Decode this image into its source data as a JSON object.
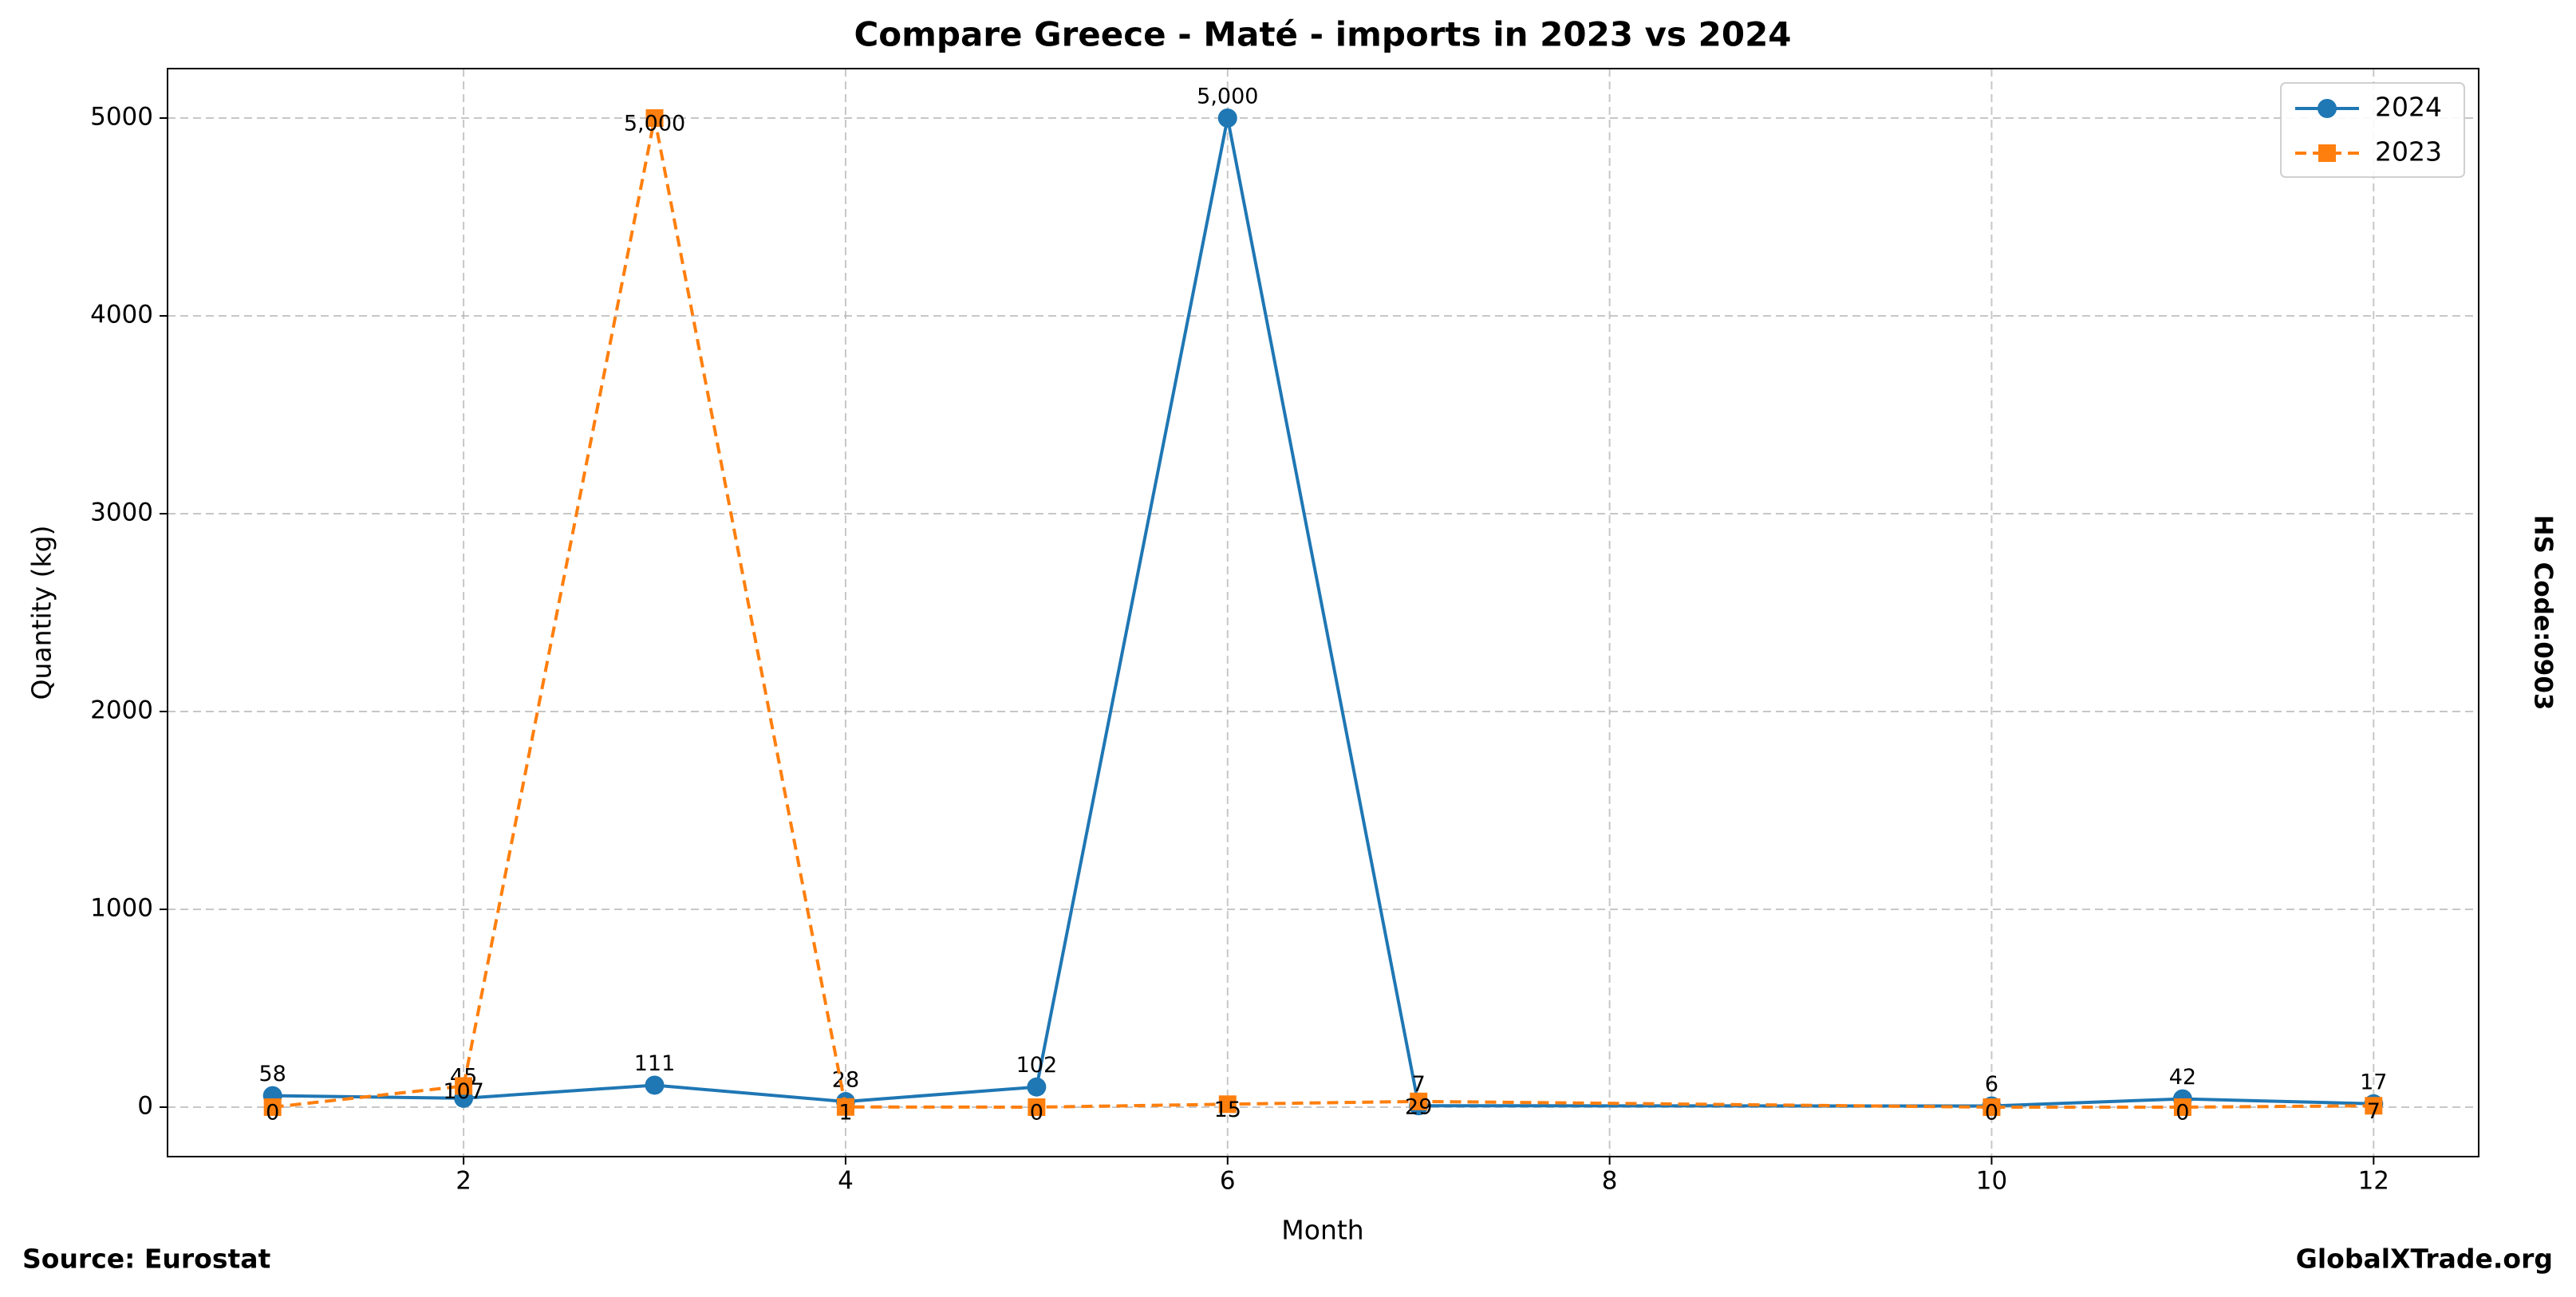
{
  "chart_data": {
    "type": "line",
    "title": "Compare Greece - Maté - imports in 2023 vs 2024",
    "x_label": "Month",
    "y_label": "Quantity (kg)",
    "side_text": "HS Code:0903",
    "source": "Source: Eurostat",
    "watermark": "GlobalXTrade.org",
    "x": [
      1,
      2,
      3,
      4,
      5,
      6,
      7,
      10,
      11,
      12
    ],
    "series": [
      {
        "name": "2024",
        "color": "#1f77b4",
        "linestyle": "solid",
        "marker": "circle",
        "values": [
          58,
          45,
          111,
          28,
          102,
          5000,
          7,
          6,
          42,
          17
        ],
        "value_labels": [
          "58",
          "45",
          "111",
          "28",
          "102",
          "5,000",
          "7",
          "6",
          "42",
          "17"
        ]
      },
      {
        "name": "2023",
        "color": "#ff7f0e",
        "linestyle": "dashed",
        "marker": "square",
        "values": [
          0,
          107,
          5000,
          1,
          0,
          15,
          29,
          0,
          0,
          7
        ],
        "value_labels": [
          "0",
          "107",
          "5,000",
          "1",
          "0",
          "15",
          "29",
          "0",
          "0",
          "7"
        ]
      }
    ],
    "xlim": [
      0.45,
      12.55
    ],
    "ylim": [
      -250,
      5250
    ],
    "xticks": [
      2,
      4,
      6,
      8,
      10,
      12
    ],
    "yticks": [
      0,
      1000,
      2000,
      3000,
      4000,
      5000
    ],
    "grid": true,
    "legend": "upper right"
  }
}
